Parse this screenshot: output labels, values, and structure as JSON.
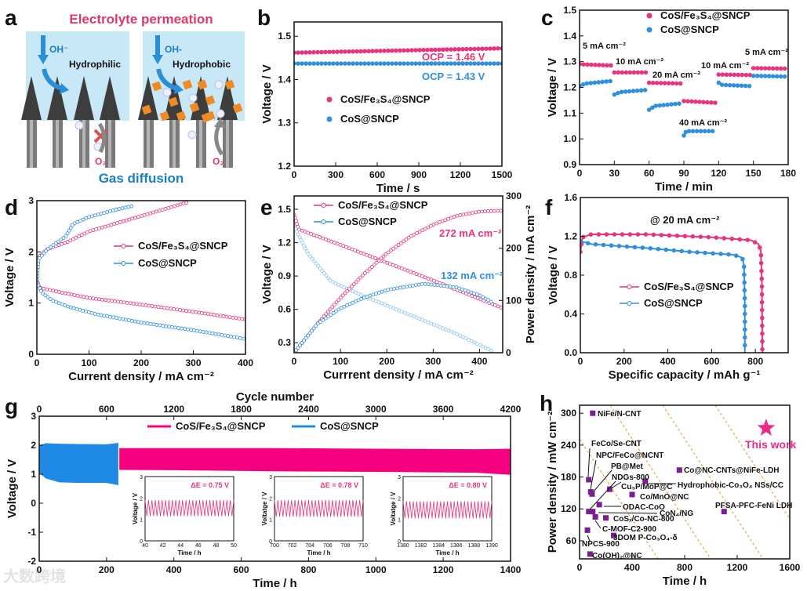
{
  "panel_labels": {
    "a": "a",
    "b": "b",
    "c": "c",
    "d": "d",
    "e": "e",
    "f": "f",
    "g": "g",
    "h": "h"
  },
  "watermark": "大数跨境",
  "diagram_a": {
    "title": "Electrolyte permeation",
    "left": {
      "ion": "OH⁻",
      "label": "Hydrophilic",
      "gas": "O₂"
    },
    "right": {
      "ion": "OH-",
      "label": "Hydrophobic",
      "gas": "O₂"
    },
    "footer": "Gas diffusion",
    "colors": {
      "title": "#e0386a",
      "footer": "#1a7fc4",
      "electrolyte": "#c9e8f7",
      "particle": "#f08a24"
    }
  },
  "chart_data": [
    {
      "id": "b",
      "type": "scatter",
      "xlabel": "Time / s",
      "ylabel": "Voltage / V",
      "xlim": [
        0,
        1500
      ],
      "ylim": [
        1.2,
        1.533
      ],
      "xticks": [
        "0",
        "300",
        "600",
        "900",
        "1200",
        "1500"
      ],
      "yticks": [
        "1.2",
        "1.3",
        "1.4",
        "1.5"
      ],
      "series": [
        {
          "name": "CoS/Fe₃S₄@SNCP",
          "color": "#e8337f",
          "style": "markers",
          "points": [
            [
              0,
              1.462
            ],
            [
              750,
              1.467
            ],
            [
              1500,
              1.472
            ]
          ]
        },
        {
          "name": "CoS@SNCP",
          "color": "#2f8fe0",
          "style": "markers",
          "points": [
            [
              0,
              1.437
            ],
            [
              750,
              1.437
            ],
            [
              1500,
              1.437
            ]
          ]
        }
      ],
      "annotations": [
        "OCP = 1.46 V",
        "OCP = 1.43 V"
      ]
    },
    {
      "id": "c",
      "type": "scatter",
      "xlabel": "Time / min",
      "ylabel": "Voltage / V",
      "xlim": [
        0,
        180
      ],
      "ylim": [
        0.9,
        1.5
      ],
      "xticks": [
        "0",
        "30",
        "60",
        "90",
        "120",
        "150",
        "180"
      ],
      "yticks": [
        "0.9",
        "1.0",
        "1.1",
        "1.2",
        "1.3",
        "1.4",
        "1.5"
      ],
      "series": [
        {
          "name": "CoS/Fe₃S₄@SNCP",
          "color": "#e8337f",
          "style": "markers",
          "segments": [
            [
              [
                0,
                1.29
              ],
              [
                28,
                1.285
              ]
            ],
            [
              [
                30,
                1.258
              ],
              [
                58,
                1.258
              ]
            ],
            [
              [
                60,
                1.218
              ],
              [
                88,
                1.215
              ]
            ],
            [
              [
                90,
                1.147
              ],
              [
                118,
                1.14
              ]
            ],
            [
              [
                120,
                1.25
              ],
              [
                148,
                1.248
              ]
            ],
            [
              [
                150,
                1.275
              ],
              [
                178,
                1.273
              ]
            ]
          ]
        },
        {
          "name": "CoS@SNCP",
          "color": "#2f8fe0",
          "style": "markers",
          "segments": [
            [
              [
                0,
                1.205
              ],
              [
                5,
                1.215
              ],
              [
                28,
                1.225
              ]
            ],
            [
              [
                30,
                1.172
              ],
              [
                35,
                1.182
              ],
              [
                58,
                1.19
              ]
            ],
            [
              [
                60,
                1.113
              ],
              [
                65,
                1.128
              ],
              [
                88,
                1.138
              ]
            ],
            [
              [
                90,
                1.013
              ],
              [
                92,
                1.03
              ],
              [
                118,
                1.03
              ]
            ],
            [
              [
                120,
                1.218
              ],
              [
                123,
                1.21
              ],
              [
                148,
                1.205
              ]
            ],
            [
              [
                150,
                1.245
              ],
              [
                178,
                1.242
              ]
            ]
          ]
        }
      ],
      "annotations": [
        "5 mA cm⁻²",
        "10 mA cm⁻²",
        "20 mA cm⁻²",
        "40 mA cm⁻²",
        "10 mA cm⁻²",
        "5 mA cm⁻²"
      ]
    },
    {
      "id": "d",
      "type": "line",
      "xlabel": "Current density / mA cm⁻²",
      "ylabel": "Voltage / V",
      "xlim": [
        0,
        400
      ],
      "ylim": [
        0,
        3
      ],
      "xticks": [
        "0",
        "100",
        "200",
        "300",
        "400"
      ],
      "yticks": [
        "0",
        "1",
        "2",
        "3"
      ],
      "series": [
        {
          "name": "CoS/Fe₃S₄@SNCP",
          "color": "#e8337f",
          "style": "open",
          "segments": [
            [
              [
                0,
                1.45
              ],
              [
                3,
                1.9
              ],
              [
                20,
                2.05
              ],
              [
                60,
                2.2
              ],
              [
                100,
                2.4
              ],
              [
                200,
                2.7
              ],
              [
                290,
                2.97
              ]
            ],
            [
              [
                0,
                1.45
              ],
              [
                5,
                1.3
              ],
              [
                50,
                1.2
              ],
              [
                100,
                1.1
              ],
              [
                200,
                0.97
              ],
              [
                300,
                0.83
              ],
              [
                400,
                0.68
              ]
            ]
          ]
        },
        {
          "name": "CoS@SNCP",
          "color": "#2f8fe0",
          "style": "open",
          "segments": [
            [
              [
                0,
                1.4
              ],
              [
                3,
                1.85
              ],
              [
                20,
                2.05
              ],
              [
                55,
                2.3
              ],
              [
                70,
                2.55
              ],
              [
                100,
                2.68
              ],
              [
                150,
                2.82
              ],
              [
                185,
                2.9
              ]
            ],
            [
              [
                0,
                1.4
              ],
              [
                10,
                1.2
              ],
              [
                30,
                1.05
              ],
              [
                60,
                0.93
              ],
              [
                100,
                0.82
              ],
              [
                115,
                0.78
              ],
              [
                200,
                0.62
              ],
              [
                300,
                0.47
              ],
              [
                400,
                0.3
              ]
            ]
          ]
        }
      ]
    },
    {
      "id": "e",
      "type": "line",
      "xlabel": "Currrent density / mA cm⁻²",
      "ylabel": "Voltage / V",
      "ylabel_right": "Power density / mA cm⁻²",
      "xlim": [
        0,
        450
      ],
      "ylim": [
        0.21,
        1.62
      ],
      "ylim_right": [
        0,
        300
      ],
      "xticks": [
        "0",
        "100",
        "200",
        "300",
        "400"
      ],
      "yticks": [
        "0.3",
        "0.6",
        "0.9",
        "1.2",
        "1.5"
      ],
      "yticks_right": [
        "0",
        "100",
        "200",
        "300"
      ],
      "series": [
        {
          "name": "CoS/Fe₃S₄@SNCP",
          "color": "#e8337f",
          "style": "open",
          "legend": true,
          "points": [
            [
              0,
              1.45
            ],
            [
              10,
              1.32
            ],
            [
              100,
              1.18
            ],
            [
              200,
              1.02
            ],
            [
              300,
              0.86
            ],
            [
              450,
              0.61
            ]
          ]
        },
        {
          "name": "CoS@SNCP",
          "color": "#2f8fe0",
          "style": "open",
          "legend": true,
          "light": true,
          "points": [
            [
              0,
              1.35
            ],
            [
              30,
              1.1
            ],
            [
              80,
              0.85
            ],
            [
              150,
              0.72
            ],
            [
              250,
              0.55
            ],
            [
              350,
              0.38
            ],
            [
              430,
              0.22
            ]
          ]
        },
        {
          "name": "CoS/Fe₃S₄@SNCP power",
          "color": "#e8337f",
          "style": "open",
          "axis": "right",
          "points": [
            [
              0,
              0
            ],
            [
              50,
              55
            ],
            [
              100,
              105
            ],
            [
              150,
              150
            ],
            [
              200,
              190
            ],
            [
              250,
              222
            ],
            [
              300,
              245
            ],
            [
              350,
              262
            ],
            [
              400,
              270
            ],
            [
              450,
              272
            ]
          ]
        },
        {
          "name": "CoS@SNCP power",
          "color": "#2f8fe0",
          "style": "open",
          "axis": "right",
          "points": [
            [
              0,
              0
            ],
            [
              50,
              55
            ],
            [
              100,
              85
            ],
            [
              150,
              105
            ],
            [
              200,
              120
            ],
            [
              280,
              132
            ],
            [
              350,
              125
            ],
            [
              400,
              110
            ],
            [
              430,
              95
            ]
          ]
        }
      ],
      "annotations": [
        "272 mA cm⁻²",
        "132 mA cm⁻²"
      ]
    },
    {
      "id": "f",
      "type": "line",
      "xlabel": "Specific capacity / mAh g⁻¹",
      "ylabel": "Voltage / V",
      "xlim": [
        0,
        950
      ],
      "ylim": [
        0,
        1.6
      ],
      "xticks": [
        "0",
        "200",
        "400",
        "600",
        "800"
      ],
      "yticks": [
        "0.0",
        "0.4",
        "0.8",
        "1.2",
        "1.6"
      ],
      "series": [
        {
          "name": "CoS/Fe₃S₄@SNCP",
          "color": "#e8337f",
          "style": "markers",
          "points": [
            [
              0,
              1.04
            ],
            [
              10,
              1.19
            ],
            [
              50,
              1.22
            ],
            [
              300,
              1.22
            ],
            [
              600,
              1.19
            ],
            [
              780,
              1.16
            ],
            [
              815,
              1.12
            ],
            [
              825,
              1.05
            ],
            [
              830,
              0.7
            ],
            [
              832,
              0
            ]
          ]
        },
        {
          "name": "CoS@SNCP",
          "color": "#2f8fe0",
          "style": "markers",
          "points": [
            [
              0,
              1.15
            ],
            [
              50,
              1.12
            ],
            [
              300,
              1.08
            ],
            [
              500,
              1.04
            ],
            [
              700,
              1.01
            ],
            [
              740,
              0.98
            ],
            [
              748,
              0.9
            ],
            [
              752,
              0.5
            ],
            [
              752,
              0
            ]
          ]
        }
      ],
      "annotations": [
        "@ 20 mA cm⁻²"
      ]
    },
    {
      "id": "g",
      "type": "area",
      "xlabel": "Time / h",
      "ylabel": "Voltage / V",
      "xlabel_top": "Cycle number",
      "xlim": [
        0,
        1400
      ],
      "ylim": [
        -2,
        3
      ],
      "xlim_top": [
        0,
        4200
      ],
      "xticks": [
        "0",
        "200",
        "400",
        "600",
        "800",
        "1000",
        "1200",
        "1400"
      ],
      "yticks": [
        "-2",
        "-1",
        "0",
        "1",
        "2",
        "3"
      ],
      "xticks_top": [
        "0",
        "600",
        "1200",
        "1800",
        "2400",
        "3000",
        "3600",
        "4200"
      ],
      "series": [
        {
          "name": "CoS/Fe₃S₄@SNCP",
          "color": "#f5007f",
          "style": "band",
          "x": [
            238,
            400,
            700,
            1000,
            1300,
            1400
          ],
          "upper": [
            1.9,
            1.9,
            1.9,
            1.88,
            1.86,
            1.88
          ],
          "lower": [
            1.15,
            1.14,
            1.1,
            1.08,
            1.05,
            0.98
          ]
        },
        {
          "name": "CoS@SNCP",
          "color": "#1e8ae6",
          "style": "band",
          "x": [
            0,
            20,
            60,
            120,
            200,
            235
          ],
          "upper": [
            2.0,
            2.07,
            2.05,
            2.04,
            2.03,
            2.08
          ],
          "lower": [
            1.05,
            0.85,
            0.72,
            0.7,
            0.7,
            0.62
          ]
        }
      ],
      "insets": [
        {
          "xlabel": "Time / h",
          "ylabel": "Voltage / V",
          "xticks": [
            "40",
            "42",
            "44",
            "46",
            "48",
            "50"
          ],
          "yticks": [
            "0",
            "1",
            "2",
            "3"
          ],
          "ylim": [
            0,
            3
          ],
          "upper": 1.9,
          "lower": 1.15,
          "cycles": 26,
          "label": "ΔE = 0.75 V"
        },
        {
          "xlabel": "Time / h",
          "ylabel": "Voltatge / V",
          "xticks": [
            "700",
            "702",
            "704",
            "706",
            "708",
            "710"
          ],
          "yticks": [
            "0",
            "1",
            "2",
            "3"
          ],
          "ylim": [
            0,
            3
          ],
          "upper": 1.9,
          "lower": 1.12,
          "cycles": 26,
          "label": "ΔE = 0.78 V"
        },
        {
          "xlabel": "Time / h",
          "ylabel": "Voltatge / V",
          "xticks": [
            "1380",
            "1382",
            "1384",
            "1386",
            "1388",
            "1390"
          ],
          "yticks": [
            "0",
            "1",
            "2",
            "3"
          ],
          "ylim": [
            0,
            3
          ],
          "upper": 1.85,
          "lower": 1.05,
          "cycles": 26,
          "label": "ΔE = 0.80 V"
        }
      ]
    },
    {
      "id": "h",
      "type": "scatter",
      "xlabel": "Time / h",
      "ylabel": "Power density / mW cm⁻²",
      "xlim": [
        0,
        1600
      ],
      "ylim": [
        26,
        315
      ],
      "xticks": [
        "0",
        "400",
        "800",
        "1200",
        "1600"
      ],
      "yticks": [
        "60",
        "120",
        "180",
        "240",
        "300"
      ],
      "marker_color": "#7a1f8f",
      "star_color": "#ec2a8a",
      "points": [
        {
          "label": "NiFe/N-CNT",
          "x": 100,
          "y": 300
        },
        {
          "label": "FeCo/Se-CNT",
          "x": 70,
          "y": 175
        },
        {
          "label": "NPC/FeCo@NCNT",
          "x": 85,
          "y": 152
        },
        {
          "label": "PB@Met",
          "x": 95,
          "y": 148
        },
        {
          "label": "NDGs-800",
          "x": 70,
          "y": 115
        },
        {
          "label": "Cu₃P/MoP@C",
          "x": 230,
          "y": 157
        },
        {
          "label": "Co@NC-CNTs@NiFe-LDH",
          "x": 760,
          "y": 193
        },
        {
          "label": "Hydrophobic-Co₃O₄ NSs/CC",
          "x": 500,
          "y": 172
        },
        {
          "label": "Co/MnO@NC",
          "x": 400,
          "y": 147
        },
        {
          "label": "ODAC-CoO",
          "x": 150,
          "y": 128
        },
        {
          "label": "CoN₄/NG",
          "x": 100,
          "y": 115
        },
        {
          "label": "PFSA-PFC-FeNi LDH",
          "x": 1100,
          "y": 115
        },
        {
          "label": "CoSₓ/Co-NC-800",
          "x": 200,
          "y": 103
        },
        {
          "label": "C-MOF-C2-900",
          "x": 120,
          "y": 105
        },
        {
          "label": "3DOM P-Co₃O₄-δ",
          "x": 260,
          "y": 70
        },
        {
          "label": "NPCS-900",
          "x": 60,
          "y": 80
        },
        {
          "label": "Co(OH)₂@NC",
          "x": 80,
          "y": 35
        }
      ],
      "highlight": {
        "label": "This work",
        "x": 1420,
        "y": 272
      }
    }
  ]
}
